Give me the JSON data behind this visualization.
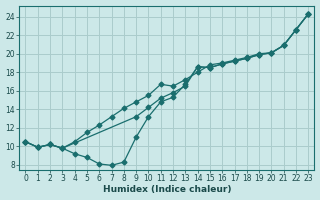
{
  "title": "",
  "xlabel": "Humidex (Indice chaleur)",
  "ylabel": "",
  "bg_color": "#cce8e8",
  "grid_color": "#aacccc",
  "line_color": "#1a6e6e",
  "xlim": [
    -0.5,
    23.5
  ],
  "ylim": [
    7.5,
    25.2
  ],
  "xticks": [
    0,
    1,
    2,
    3,
    4,
    5,
    6,
    7,
    8,
    9,
    10,
    11,
    12,
    13,
    14,
    15,
    16,
    17,
    18,
    19,
    20,
    21,
    22,
    23
  ],
  "yticks": [
    8,
    10,
    12,
    14,
    16,
    18,
    20,
    22,
    24
  ],
  "line1_x": [
    0,
    1,
    2,
    3,
    4,
    5,
    6,
    7,
    8,
    9,
    10,
    11,
    12,
    13,
    14,
    15,
    16,
    17,
    18,
    19,
    20,
    21,
    22,
    23
  ],
  "line1_y": [
    10.5,
    9.9,
    10.2,
    9.8,
    9.2,
    8.8,
    8.1,
    7.95,
    8.3,
    11.0,
    13.2,
    14.8,
    15.3,
    16.7,
    18.6,
    18.5,
    18.9,
    19.2,
    19.5,
    19.9,
    20.1,
    20.9,
    22.6,
    24.3
  ],
  "line2_x": [
    0,
    1,
    2,
    3,
    9,
    10,
    11,
    12,
    13,
    14,
    15,
    16,
    17,
    18,
    19,
    20,
    21,
    22,
    23
  ],
  "line2_y": [
    10.5,
    9.9,
    10.2,
    9.8,
    13.2,
    14.2,
    15.2,
    15.8,
    16.5,
    18.6,
    18.5,
    18.9,
    19.2,
    19.5,
    19.9,
    20.1,
    20.9,
    22.6,
    24.3
  ],
  "line3_x": [
    0,
    1,
    2,
    3,
    4,
    5,
    6,
    7,
    8,
    9,
    10,
    11,
    12,
    13,
    14,
    15,
    16,
    17,
    18,
    19,
    20,
    21,
    22,
    23
  ],
  "line3_y": [
    10.5,
    9.9,
    10.2,
    9.8,
    10.5,
    11.5,
    12.3,
    13.2,
    14.1,
    14.8,
    15.5,
    16.7,
    16.5,
    17.2,
    18.0,
    18.8,
    19.0,
    19.3,
    19.6,
    20.0,
    20.1,
    20.9,
    22.6,
    24.3
  ]
}
